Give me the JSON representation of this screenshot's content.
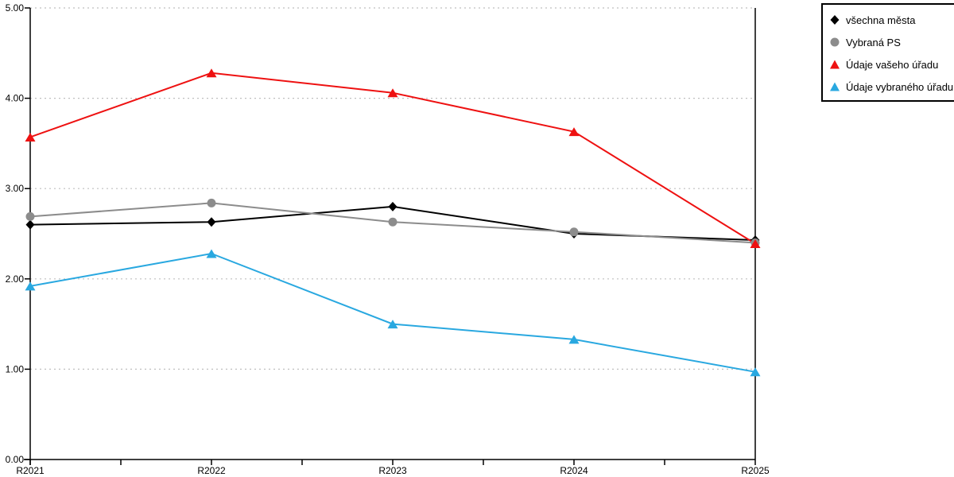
{
  "chart_data": {
    "type": "line",
    "title": "",
    "x": [
      "R2021",
      "R2022",
      "R2023",
      "R2024",
      "R2025"
    ],
    "series": [
      {
        "name": "všechna města",
        "color": "#000000",
        "marker": "diamond",
        "values": [
          2.6,
          2.63,
          2.8,
          2.5,
          2.43
        ]
      },
      {
        "name": "Vybraná PS",
        "color": "#8c8c8c",
        "marker": "circle",
        "values": [
          2.69,
          2.84,
          2.63,
          2.52,
          2.4
        ]
      },
      {
        "name": "Údaje vašeho úřadu",
        "color": "#ee1111",
        "marker": "triangle",
        "values": [
          3.57,
          4.28,
          4.06,
          3.63,
          2.39
        ]
      },
      {
        "name": "Údaje vybraného úřadu",
        "color": "#29a8e0",
        "marker": "triangle",
        "values": [
          1.92,
          2.28,
          1.5,
          1.33,
          0.97
        ]
      }
    ],
    "ylim": [
      0,
      5
    ],
    "ytick_labels": [
      "0.00",
      "1.00",
      "2.00",
      "3.00",
      "4.00",
      "5.00"
    ],
    "xlabel": "",
    "ylabel": "",
    "grid": "horizontal-dotted",
    "grid_color": "#bfbfbf",
    "axis_color": "#000000",
    "legend_position": "top-right"
  }
}
